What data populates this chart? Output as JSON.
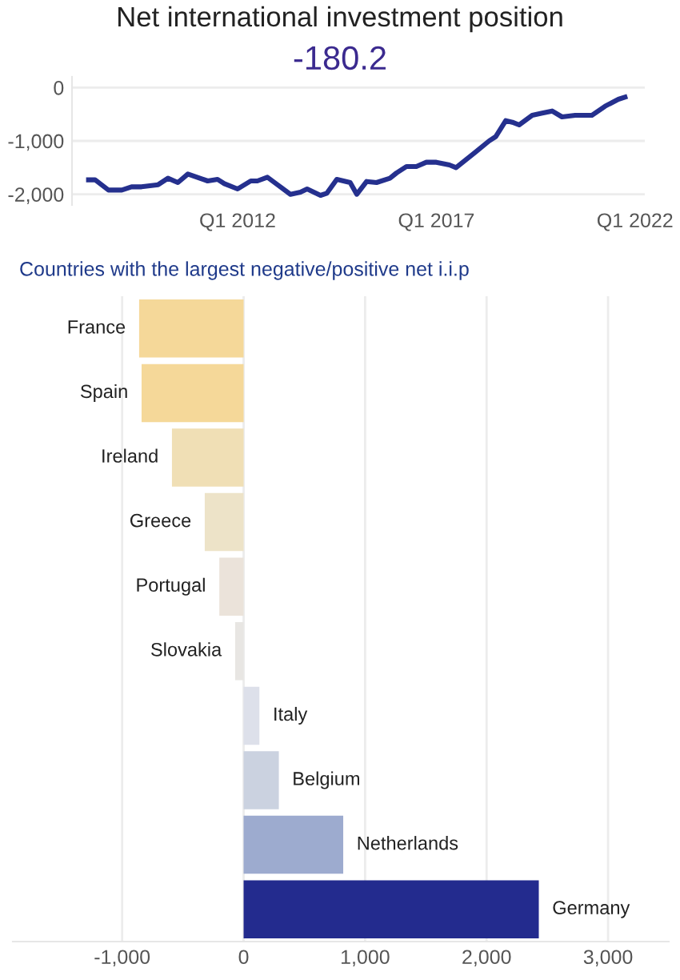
{
  "chart_data": [
    {
      "type": "line",
      "title": "Net international investment position",
      "subtitle": "-180.2",
      "x": [
        "2008-04",
        "2008-06",
        "2008-10",
        "2009-02",
        "2009-05",
        "2009-08",
        "2010-01",
        "2010-04",
        "2010-07",
        "2010-10",
        "2011-04",
        "2011-07",
        "2011-09",
        "2012-01",
        "2012-05",
        "2012-07",
        "2012-10",
        "2013-01",
        "2013-05",
        "2013-08",
        "2013-10",
        "2014-02",
        "2014-04",
        "2014-07",
        "2014-11",
        "2015-01",
        "2015-04",
        "2015-07",
        "2015-11",
        "2016-01",
        "2016-04",
        "2016-07",
        "2016-10",
        "2017-01",
        "2017-05",
        "2017-07",
        "2017-10",
        "2018-01",
        "2018-05",
        "2018-07",
        "2018-10",
        "2018-12",
        "2019-02",
        "2019-06",
        "2019-09",
        "2019-12",
        "2020-03",
        "2020-07",
        "2020-09",
        "2020-12",
        "2021-04",
        "2021-08",
        "2021-10"
      ],
      "series": [
        {
          "color": "#25308e",
          "values": [
            -1730,
            -1730,
            -1920,
            -1920,
            -1860,
            -1860,
            -1820,
            -1700,
            -1780,
            -1620,
            -1750,
            -1720,
            -1800,
            -1900,
            -1750,
            -1750,
            -1680,
            -1820,
            -2000,
            -1960,
            -1900,
            -2020,
            -1980,
            -1720,
            -1780,
            -2000,
            -1760,
            -1780,
            -1700,
            -1600,
            -1480,
            -1480,
            -1400,
            -1400,
            -1450,
            -1500,
            -1350,
            -1200,
            -1000,
            -920,
            -620,
            -650,
            -700,
            -520,
            -480,
            -440,
            -550,
            -520,
            -520,
            -520,
            -350,
            -220,
            -180
          ]
        }
      ],
      "xlim": [
        "2007-11",
        "2022-04"
      ],
      "xticks": [
        {
          "value": "2012-01",
          "label": "Q1 2012"
        },
        {
          "value": "2017-01",
          "label": "Q1 2017"
        },
        {
          "value": "2022-01",
          "label": "Q1 2022"
        }
      ],
      "ylim": [
        -2200,
        200
      ],
      "yticks": [
        {
          "value": 0,
          "label": "0"
        },
        {
          "value": -1000,
          "label": "-1,000"
        },
        {
          "value": -2000,
          "label": "-2,000"
        }
      ],
      "grid": "y",
      "marker": "none",
      "line_style": "solid"
    },
    {
      "type": "bar",
      "orientation": "horizontal",
      "title": "Countries with the largest negative/positive net i.i.p",
      "categories": [
        "France",
        "Spain",
        "Ireland",
        "Greece",
        "Portugal",
        "Slovakia",
        "Italy",
        "Belgium",
        "Netherlands",
        "Germany"
      ],
      "values": [
        -860,
        -840,
        -590,
        -320,
        -200,
        -70,
        130,
        290,
        820,
        2430
      ],
      "colors": [
        "#f5d899",
        "#f5d899",
        "#f0dfb5",
        "#ede3c8",
        "#ebe3da",
        "#e8e6e3",
        "#dde0ea",
        "#cbd2e0",
        "#9dabcf",
        "#232b8e"
      ],
      "xlim": [
        -1900,
        3500
      ],
      "xticks": [
        {
          "value": -1000,
          "label": "-1,000"
        },
        {
          "value": 0,
          "label": "0"
        },
        {
          "value": 1000,
          "label": "1,000"
        },
        {
          "value": 2000,
          "label": "2,000"
        },
        {
          "value": 3000,
          "label": "3,000"
        }
      ],
      "grid": "x"
    }
  ]
}
